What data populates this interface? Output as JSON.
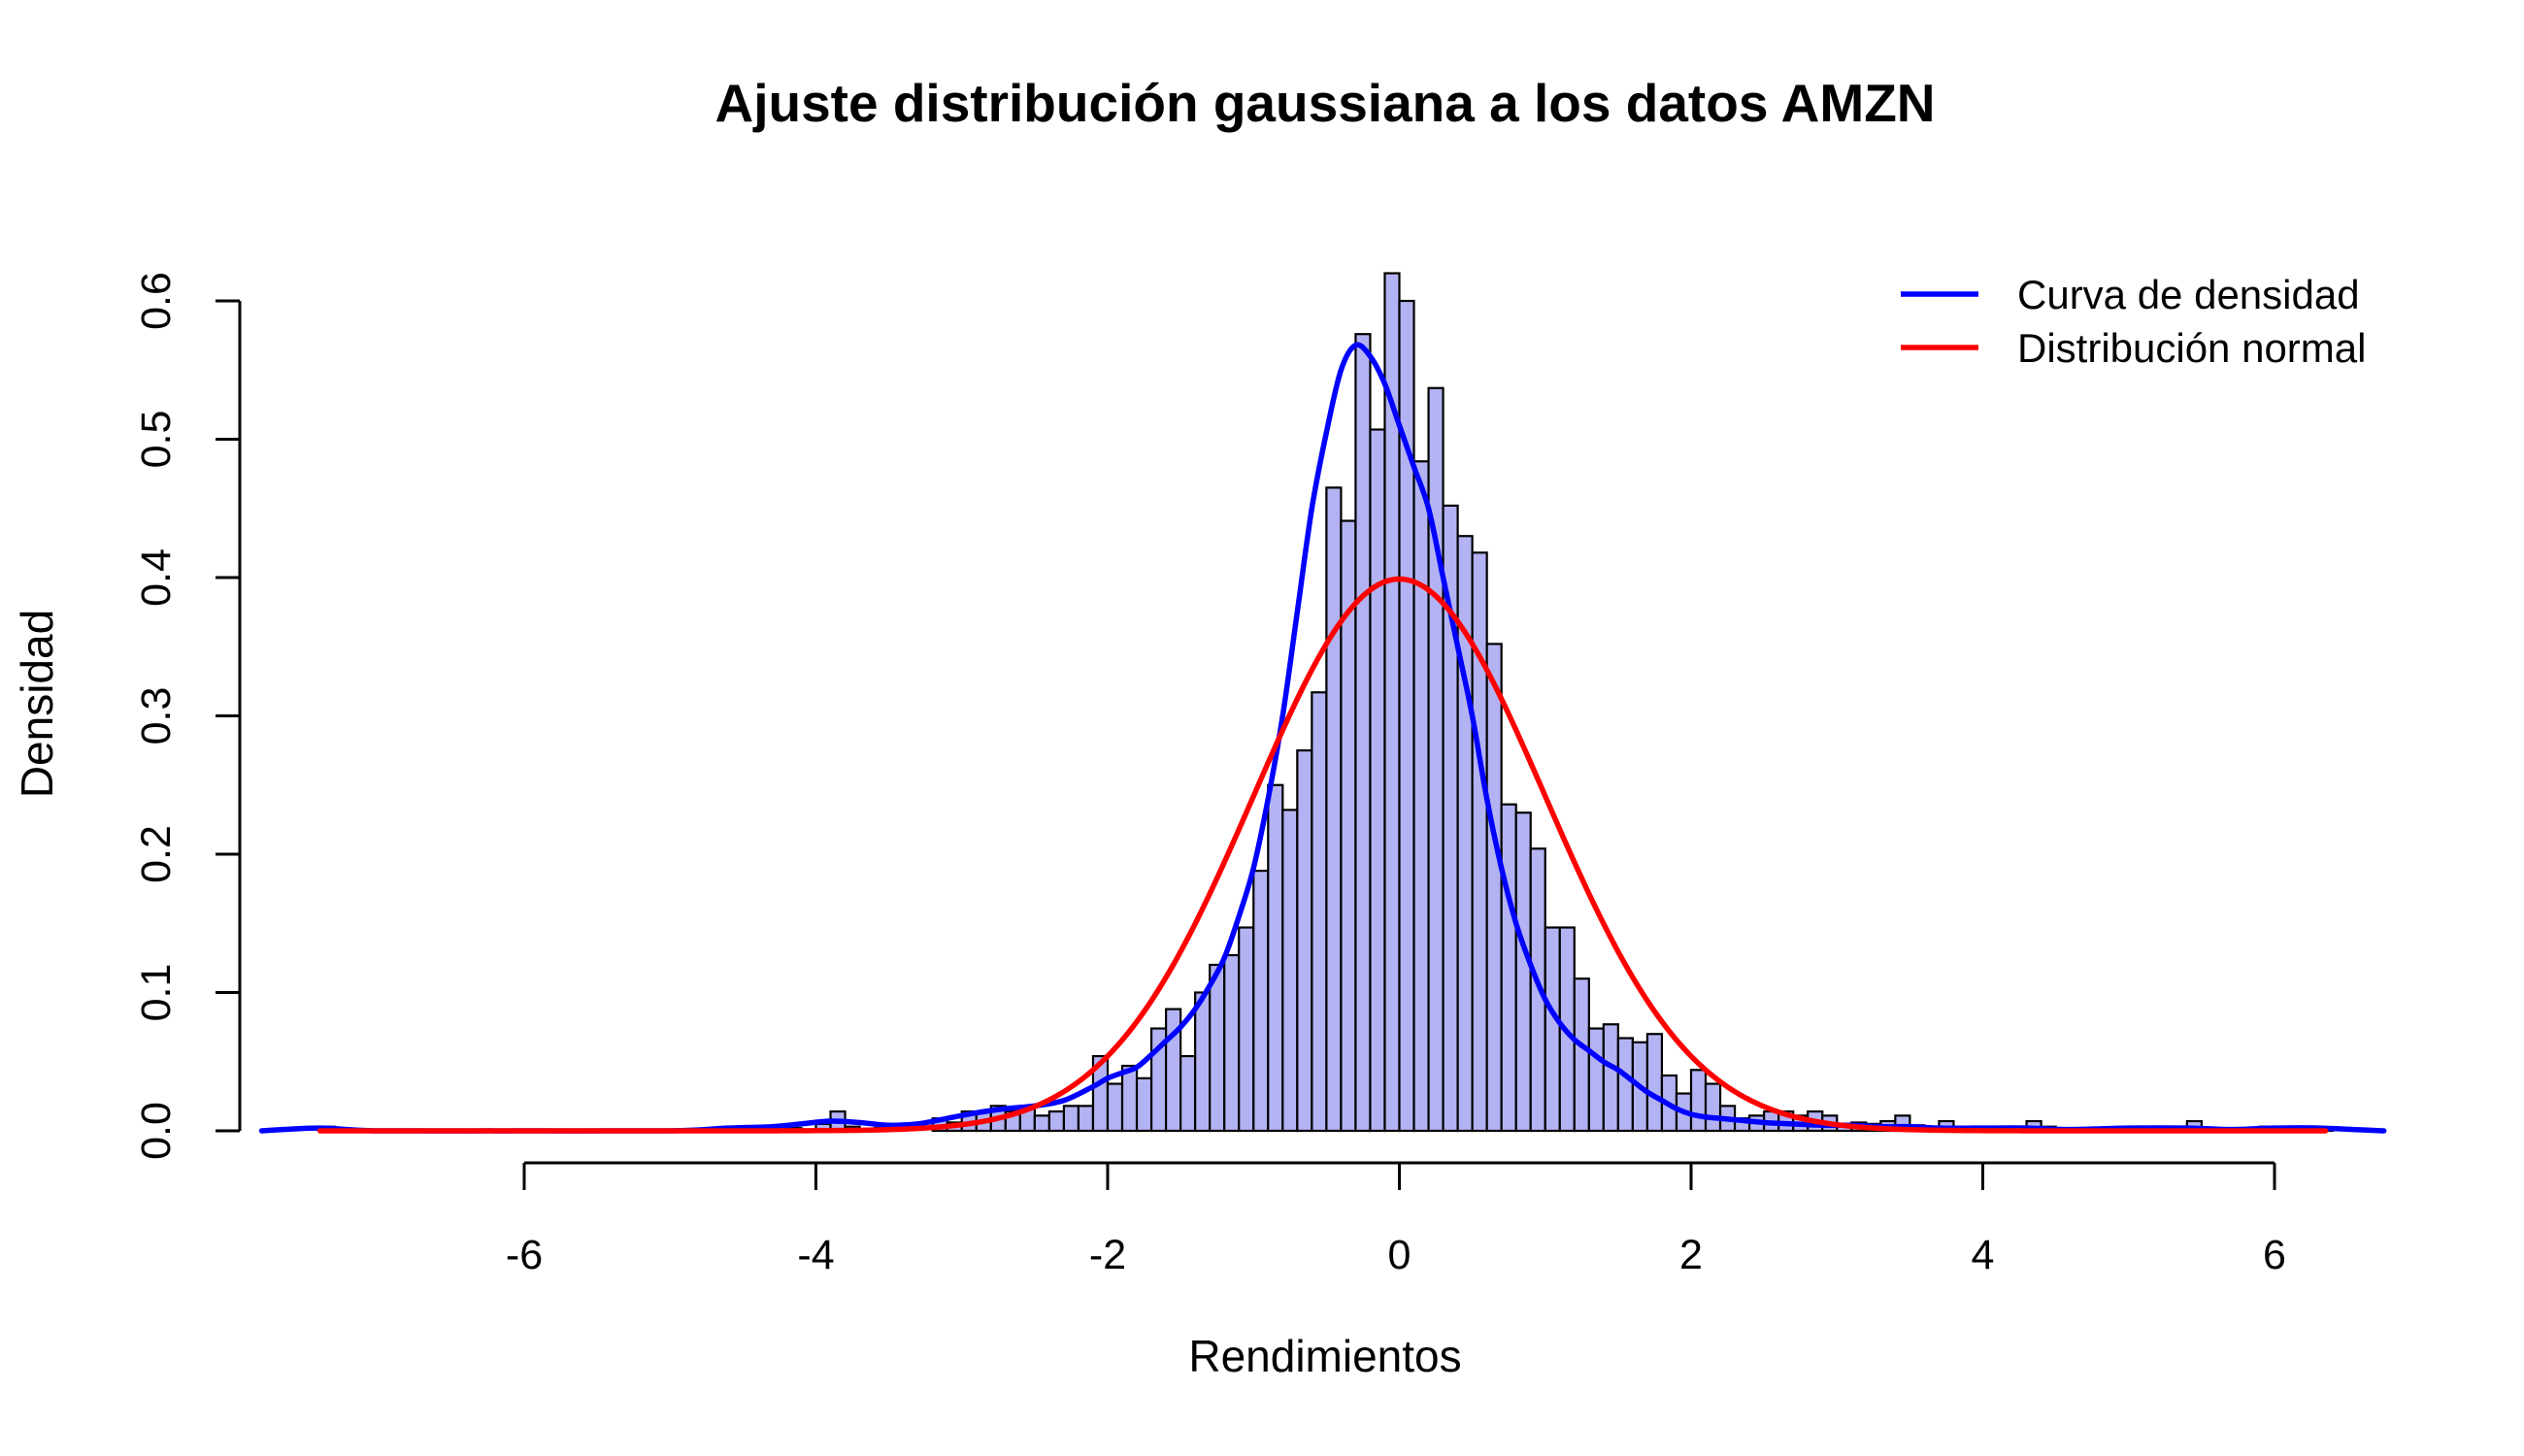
{
  "chart_data": {
    "type": "bar",
    "title": "Ajuste distribución gaussiana a los datos AMZN",
    "xlabel": "Rendimientos",
    "ylabel": "Densidad",
    "xlim": [
      -7.8,
      6.75
    ],
    "ylim": [
      0,
      0.62
    ],
    "x_ticks": [
      -6,
      -4,
      -2,
      0,
      2,
      4,
      6
    ],
    "x_tick_labels": [
      "-6",
      "-4",
      "-2",
      "0",
      "2",
      "4",
      "6"
    ],
    "y_ticks": [
      0,
      0.1,
      0.2,
      0.3,
      0.4,
      0.5,
      0.6
    ],
    "y_tick_labels": [
      "0.0",
      "0.1",
      "0.2",
      "0.3",
      "0.4",
      "0.5",
      "0.6"
    ],
    "grid": false,
    "legend_position": "top-right",
    "histogram": {
      "bin_width": 0.1,
      "fill_color": "#b3b3f3",
      "edge_color": "#000000",
      "bins": [
        [
          -7.4,
          0.003
        ],
        [
          -4.6,
          0.002
        ],
        [
          -4.5,
          0.002
        ],
        [
          -4.3,
          0.002
        ],
        [
          -4.2,
          0.002
        ],
        [
          -4.0,
          0.005
        ],
        [
          -3.9,
          0.014
        ],
        [
          -3.8,
          0.003
        ],
        [
          -3.6,
          0.002
        ],
        [
          -3.2,
          0.009
        ],
        [
          -3.1,
          0.006
        ],
        [
          -3.0,
          0.014
        ],
        [
          -2.9,
          0.014
        ],
        [
          -2.8,
          0.018
        ],
        [
          -2.7,
          0.014
        ],
        [
          -2.6,
          0.018
        ],
        [
          -2.5,
          0.011
        ],
        [
          -2.4,
          0.014
        ],
        [
          -2.3,
          0.018
        ],
        [
          -2.2,
          0.018
        ],
        [
          -2.1,
          0.054
        ],
        [
          -2.0,
          0.034
        ],
        [
          -1.9,
          0.047
        ],
        [
          -1.8,
          0.038
        ],
        [
          -1.7,
          0.074
        ],
        [
          -1.6,
          0.088
        ],
        [
          -1.5,
          0.054
        ],
        [
          -1.4,
          0.1
        ],
        [
          -1.3,
          0.12
        ],
        [
          -1.2,
          0.127
        ],
        [
          -1.1,
          0.147
        ],
        [
          -1.0,
          0.188
        ],
        [
          -0.9,
          0.25
        ],
        [
          -0.8,
          0.232
        ],
        [
          -0.7,
          0.275
        ],
        [
          -0.6,
          0.317
        ],
        [
          -0.5,
          0.465
        ],
        [
          -0.4,
          0.441
        ],
        [
          -0.3,
          0.576
        ],
        [
          -0.2,
          0.507
        ],
        [
          -0.1,
          0.62
        ],
        [
          0.0,
          0.6
        ],
        [
          0.1,
          0.484
        ],
        [
          0.2,
          0.537
        ],
        [
          0.3,
          0.452
        ],
        [
          0.4,
          0.43
        ],
        [
          0.5,
          0.418
        ],
        [
          0.6,
          0.352
        ],
        [
          0.7,
          0.236
        ],
        [
          0.8,
          0.23
        ],
        [
          0.9,
          0.204
        ],
        [
          1.0,
          0.147
        ],
        [
          1.1,
          0.147
        ],
        [
          1.2,
          0.11
        ],
        [
          1.3,
          0.074
        ],
        [
          1.4,
          0.077
        ],
        [
          1.5,
          0.067
        ],
        [
          1.6,
          0.064
        ],
        [
          1.7,
          0.07
        ],
        [
          1.8,
          0.04
        ],
        [
          1.9,
          0.027
        ],
        [
          2.0,
          0.044
        ],
        [
          2.1,
          0.034
        ],
        [
          2.2,
          0.018
        ],
        [
          2.3,
          0.009
        ],
        [
          2.4,
          0.011
        ],
        [
          2.5,
          0.014
        ],
        [
          2.6,
          0.014
        ],
        [
          2.7,
          0.011
        ],
        [
          2.8,
          0.014
        ],
        [
          2.9,
          0.011
        ],
        [
          3.0,
          0.005
        ],
        [
          3.1,
          0.006
        ],
        [
          3.2,
          0.005
        ],
        [
          3.3,
          0.007
        ],
        [
          3.4,
          0.011
        ],
        [
          3.5,
          0.004
        ],
        [
          3.6,
          0.003
        ],
        [
          3.7,
          0.007
        ],
        [
          3.8,
          0.002
        ],
        [
          3.9,
          0.002
        ],
        [
          4.0,
          0.003
        ],
        [
          4.1,
          0.002
        ],
        [
          4.2,
          0.002
        ],
        [
          4.3,
          0.007
        ],
        [
          4.4,
          0.003
        ],
        [
          4.6,
          0.002
        ],
        [
          4.7,
          0.002
        ],
        [
          5.4,
          0.007
        ],
        [
          5.9,
          0.003
        ],
        [
          6.0,
          0.002
        ],
        [
          6.2,
          0.003
        ],
        [
          6.3,
          0.002
        ]
      ]
    },
    "series": [
      {
        "name": "Curva de densidad",
        "color": "#0000ff",
        "type": "line",
        "x": [
          -7.8,
          -7.4,
          -7.0,
          -6.0,
          -5.0,
          -4.6,
          -4.3,
          -4.1,
          -3.9,
          -3.7,
          -3.5,
          -3.3,
          -3.1,
          -2.9,
          -2.7,
          -2.5,
          -2.3,
          -2.1,
          -2.0,
          -1.9,
          -1.8,
          -1.7,
          -1.6,
          -1.5,
          -1.4,
          -1.3,
          -1.2,
          -1.1,
          -1.0,
          -0.9,
          -0.8,
          -0.7,
          -0.6,
          -0.5,
          -0.4,
          -0.3,
          -0.2,
          -0.1,
          0.0,
          0.1,
          0.2,
          0.3,
          0.4,
          0.5,
          0.6,
          0.7,
          0.8,
          0.9,
          1.0,
          1.1,
          1.2,
          1.3,
          1.4,
          1.5,
          1.6,
          1.7,
          1.8,
          1.9,
          2.0,
          2.1,
          2.2,
          2.3,
          2.5,
          2.7,
          2.9,
          3.1,
          3.3,
          3.5,
          3.7,
          4.0,
          4.3,
          4.6,
          5.0,
          5.4,
          5.7,
          6.0,
          6.3,
          6.75
        ],
        "y": [
          0.0,
          0.002,
          0.0,
          0.0,
          0.0,
          0.002,
          0.003,
          0.005,
          0.007,
          0.006,
          0.004,
          0.005,
          0.009,
          0.013,
          0.016,
          0.018,
          0.022,
          0.032,
          0.038,
          0.042,
          0.046,
          0.055,
          0.065,
          0.075,
          0.088,
          0.105,
          0.125,
          0.155,
          0.19,
          0.24,
          0.3,
          0.375,
          0.45,
          0.505,
          0.55,
          0.568,
          0.56,
          0.54,
          0.51,
          0.48,
          0.45,
          0.4,
          0.35,
          0.3,
          0.24,
          0.19,
          0.15,
          0.12,
          0.095,
          0.078,
          0.066,
          0.058,
          0.05,
          0.044,
          0.036,
          0.028,
          0.022,
          0.016,
          0.012,
          0.01,
          0.009,
          0.008,
          0.006,
          0.005,
          0.004,
          0.004,
          0.003,
          0.003,
          0.002,
          0.002,
          0.002,
          0.001,
          0.002,
          0.002,
          0.001,
          0.002,
          0.002,
          0.0
        ]
      },
      {
        "name": "Distribución normal",
        "color": "#ff0000",
        "type": "line",
        "function": "normal_pdf",
        "mean": 0,
        "sd": 1,
        "x_range": [
          -7.4,
          6.35
        ]
      }
    ]
  }
}
